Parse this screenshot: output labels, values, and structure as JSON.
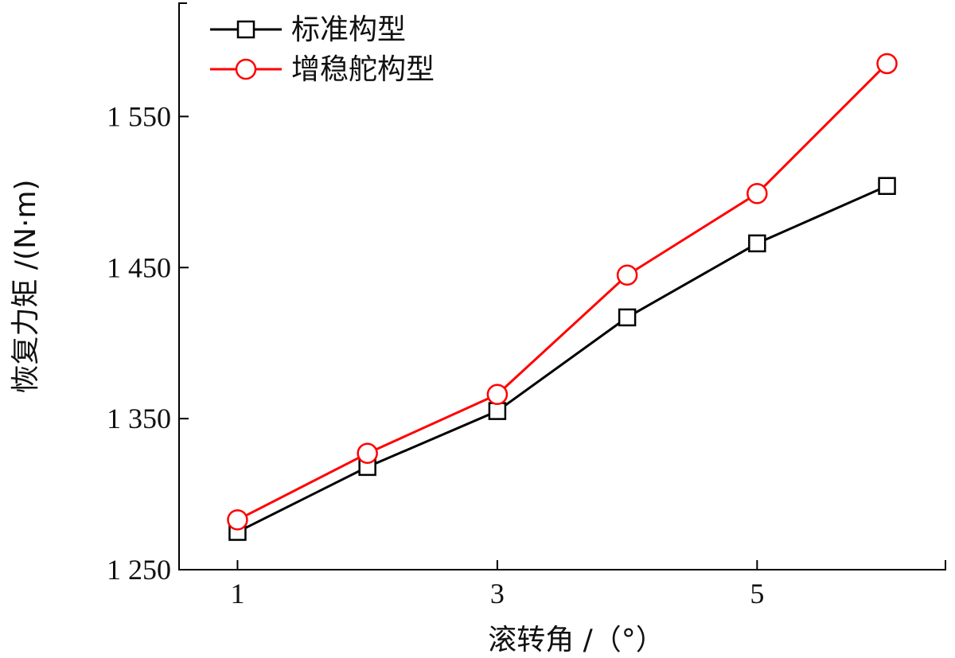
{
  "chart_data": {
    "type": "line",
    "x": [
      1,
      2,
      3,
      4,
      5,
      6
    ],
    "series": [
      {
        "name": "标准构型",
        "color": "#000000",
        "marker": "square",
        "values": [
          1275,
          1318,
          1355,
          1417,
          1466,
          1504
        ]
      },
      {
        "name": "增稳舵构型",
        "color": "#ff0000",
        "marker": "circle",
        "values": [
          1283,
          1327,
          1366,
          1445,
          1499,
          1585
        ]
      }
    ],
    "xlabel": "滚转角 /（°）",
    "ylabel": "恢复力矩 /(N·m)",
    "xlim": [
      0.55,
      6.45
    ],
    "ylim": [
      1250,
      1625
    ],
    "xticks": [
      1,
      3,
      5
    ],
    "xtick_labels": [
      "1",
      "3",
      "5"
    ],
    "yticks": [
      1250,
      1350,
      1450,
      1550
    ],
    "ytick_labels": [
      "1 250",
      "1 350",
      "1 450",
      "1 550"
    ],
    "legend_position": "top-left",
    "grid": false
  }
}
